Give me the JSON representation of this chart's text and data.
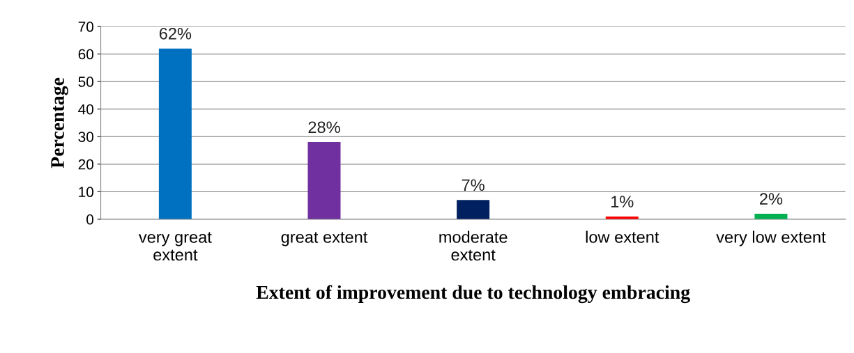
{
  "chart_data": {
    "type": "bar",
    "xlabel": "Extent of improvement due to technology embracing",
    "ylabel": "Percentage",
    "categories": [
      "very great\nextent",
      "great extent",
      "moderate\nextent",
      "low extent",
      "very low extent"
    ],
    "values": [
      62,
      28,
      7,
      1,
      2
    ],
    "colors": [
      "#0070c0",
      "#7030a0",
      "#002060",
      "#ff0000",
      "#00b050"
    ],
    "value_labels": [
      "62%",
      "28%",
      "7%",
      "1%",
      "2%"
    ],
    "ylim": [
      0,
      70
    ],
    "yticks": [
      0,
      10,
      20,
      30,
      40,
      50,
      60,
      70
    ],
    "grid": "y",
    "legend": false
  }
}
